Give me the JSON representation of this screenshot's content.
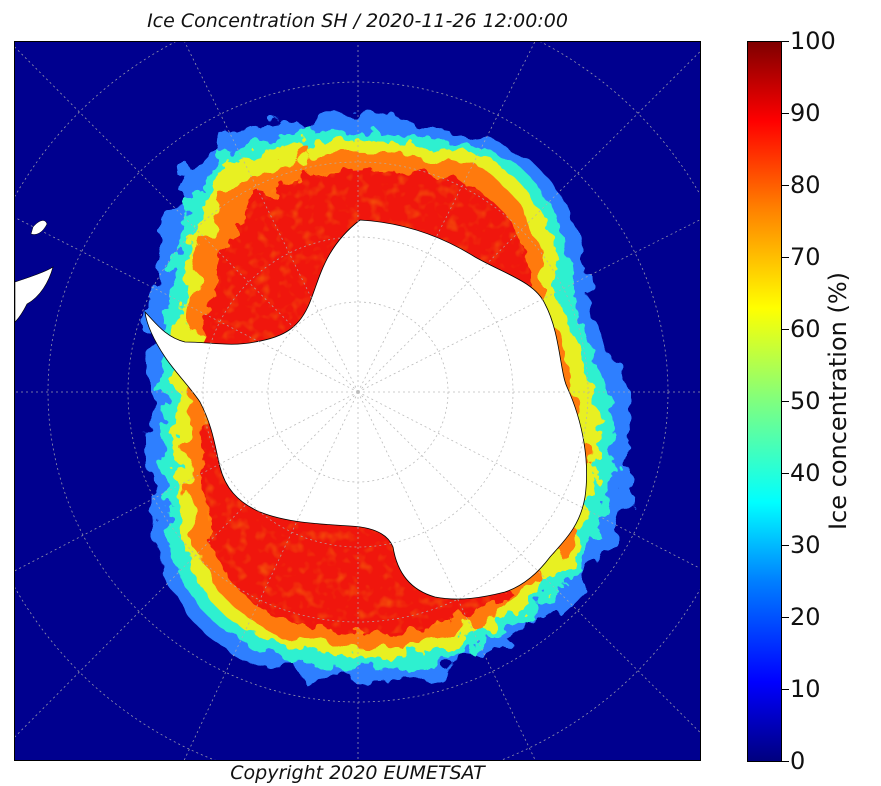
{
  "title": "Ice Concentration SH / 2020-11-26 12:00:00",
  "copyright": "Copyright 2020 EUMETSAT",
  "colorbar": {
    "label": "Ice concentration (%)",
    "ticks": [
      "0",
      "10",
      "20",
      "30",
      "40",
      "50",
      "60",
      "70",
      "80",
      "90",
      "100"
    ],
    "min": 0,
    "max": 100,
    "colors": [
      "#00007f",
      "#0000ff",
      "#007fff",
      "#00ffff",
      "#7fff7f",
      "#ffff00",
      "#ff7f00",
      "#ff0000",
      "#7f0000"
    ]
  },
  "map": {
    "projection": "south-polar-stereographic",
    "ocean_color": "#00008f",
    "land_color": "#ffffff",
    "graticule": true
  }
}
